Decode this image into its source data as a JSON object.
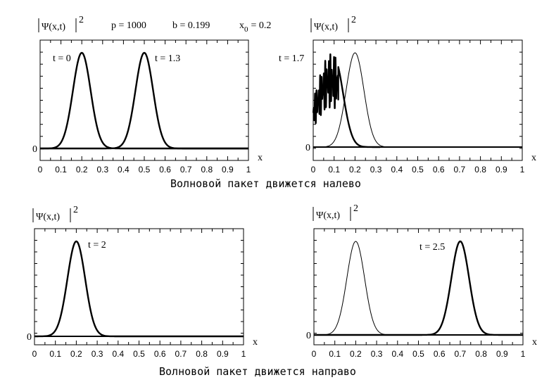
{
  "header_params": {
    "p": "p = 1000",
    "b": "b = 0.199",
    "x0_main": "x",
    "x0_sub": "0",
    "x0_value": "= 0.2"
  },
  "captions": {
    "left_moving": "Волновой пакет движется налево",
    "right_moving": "Волновой пакет движется направо"
  },
  "chart_data": [
    {
      "type": "line",
      "ylabel": "|Ψ(x,t)|²",
      "ylabel_main": "Ψ(x,t)",
      "ylabel_power": "2",
      "xlabel": "x",
      "zero_label": "0",
      "xlim": [
        0,
        1
      ],
      "ylim": [
        0,
        1
      ],
      "x_ticks": [
        "0",
        "0.1",
        "0.2",
        "0.3",
        "0.4",
        "0.5",
        "0.6",
        "0.7",
        "0.8",
        "0.9",
        "1"
      ],
      "series": [
        {
          "name": "t = 0",
          "center": 0.2,
          "width": 0.06,
          "noise": false
        },
        {
          "name": "t = 1.3",
          "center": 0.5,
          "width": 0.06,
          "noise": false
        }
      ]
    },
    {
      "type": "line",
      "ylabel": "|Ψ(x,t)|²",
      "ylabel_main": "Ψ(x,t)",
      "ylabel_power": "2",
      "xlabel": "x",
      "zero_label": "0",
      "xlim": [
        0,
        1
      ],
      "ylim": [
        0,
        1
      ],
      "x_ticks": [
        "0",
        "0.1",
        "0.2",
        "0.3",
        "0.4",
        "0.5",
        "0.6",
        "0.7",
        "0.8",
        "0.9",
        "1"
      ],
      "series": [
        {
          "name": "",
          "center": 0.2,
          "width": 0.06,
          "noise": false
        },
        {
          "name": "t = 1.7",
          "center": 0.0,
          "width": 0.1,
          "noise": true
        }
      ]
    },
    {
      "type": "line",
      "ylabel": "|Ψ(x,t)|²",
      "ylabel_main": "Ψ(x,t)",
      "ylabel_power": "2",
      "xlabel": "x",
      "zero_label": "0",
      "xlim": [
        0,
        1
      ],
      "ylim": [
        0,
        1
      ],
      "x_ticks": [
        "0",
        "0.1",
        "0.2",
        "0.3",
        "0.4",
        "0.5",
        "0.6",
        "0.7",
        "0.8",
        "0.9",
        "1"
      ],
      "series": [
        {
          "name": "t = 2",
          "center": 0.2,
          "width": 0.06,
          "noise": false
        }
      ]
    },
    {
      "type": "line",
      "ylabel": "|Ψ(x,t)|²",
      "ylabel_main": "Ψ(x,t)",
      "ylabel_power": "2",
      "xlabel": "x",
      "zero_label": "0",
      "xlim": [
        0,
        1
      ],
      "ylim": [
        0,
        1
      ],
      "x_ticks": [
        "0",
        "0.1",
        "0.2",
        "0.3",
        "0.4",
        "0.5",
        "0.6",
        "0.7",
        "0.8",
        "0.9",
        "1"
      ],
      "series": [
        {
          "name": "",
          "center": 0.2,
          "width": 0.06,
          "noise": false
        },
        {
          "name": "t = 2.5",
          "center": 0.7,
          "width": 0.06,
          "noise": false
        }
      ]
    }
  ]
}
